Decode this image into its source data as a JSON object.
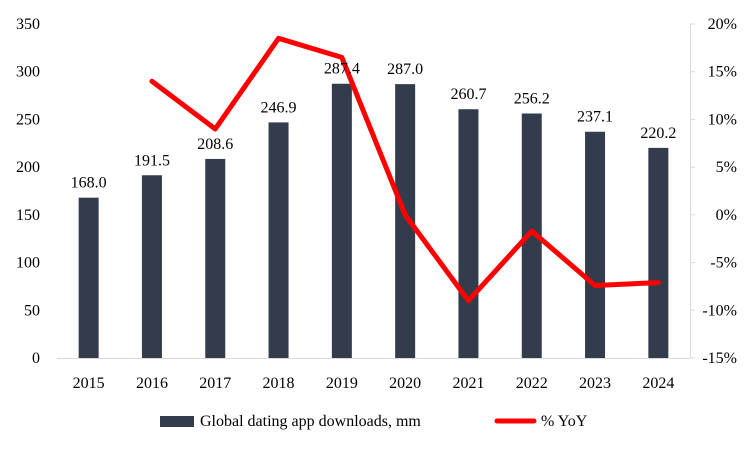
{
  "chart_data": {
    "type": "bar",
    "categories": [
      "2015",
      "2016",
      "2017",
      "2018",
      "2019",
      "2020",
      "2021",
      "2022",
      "2023",
      "2024"
    ],
    "series": [
      {
        "name": "Global dating app downloads, mm",
        "type": "bar",
        "axis": "left",
        "color": "#333c4d",
        "values": [
          168.0,
          191.5,
          208.6,
          246.9,
          287.4,
          287.0,
          260.7,
          256.2,
          237.1,
          220.2
        ],
        "labels": [
          "168.0",
          "191.5",
          "208.6",
          "246.9",
          "287.4",
          "287.0",
          "260.7",
          "256.2",
          "237.1",
          "220.2"
        ]
      },
      {
        "name": "% YoY",
        "type": "line",
        "axis": "right",
        "color": "#ff0000",
        "values": [
          null,
          14.0,
          9.0,
          18.5,
          16.5,
          0.0,
          -9.0,
          -1.7,
          -7.4,
          -7.1
        ]
      }
    ],
    "y_left": {
      "ylim": [
        0,
        350
      ],
      "ticks": [
        0,
        50,
        100,
        150,
        200,
        250,
        300,
        350
      ],
      "tick_labels": [
        "0",
        "50",
        "100",
        "150",
        "200",
        "250",
        "300",
        "350"
      ]
    },
    "y_right": {
      "ylim": [
        -15,
        20
      ],
      "ticks": [
        -15,
        -10,
        -5,
        0,
        5,
        10,
        15,
        20
      ],
      "tick_labels": [
        "-15%",
        "-10%",
        "-5%",
        "0%",
        "5%",
        "10%",
        "15%",
        "20%"
      ]
    },
    "grid": false,
    "legend": "bottom-center"
  }
}
